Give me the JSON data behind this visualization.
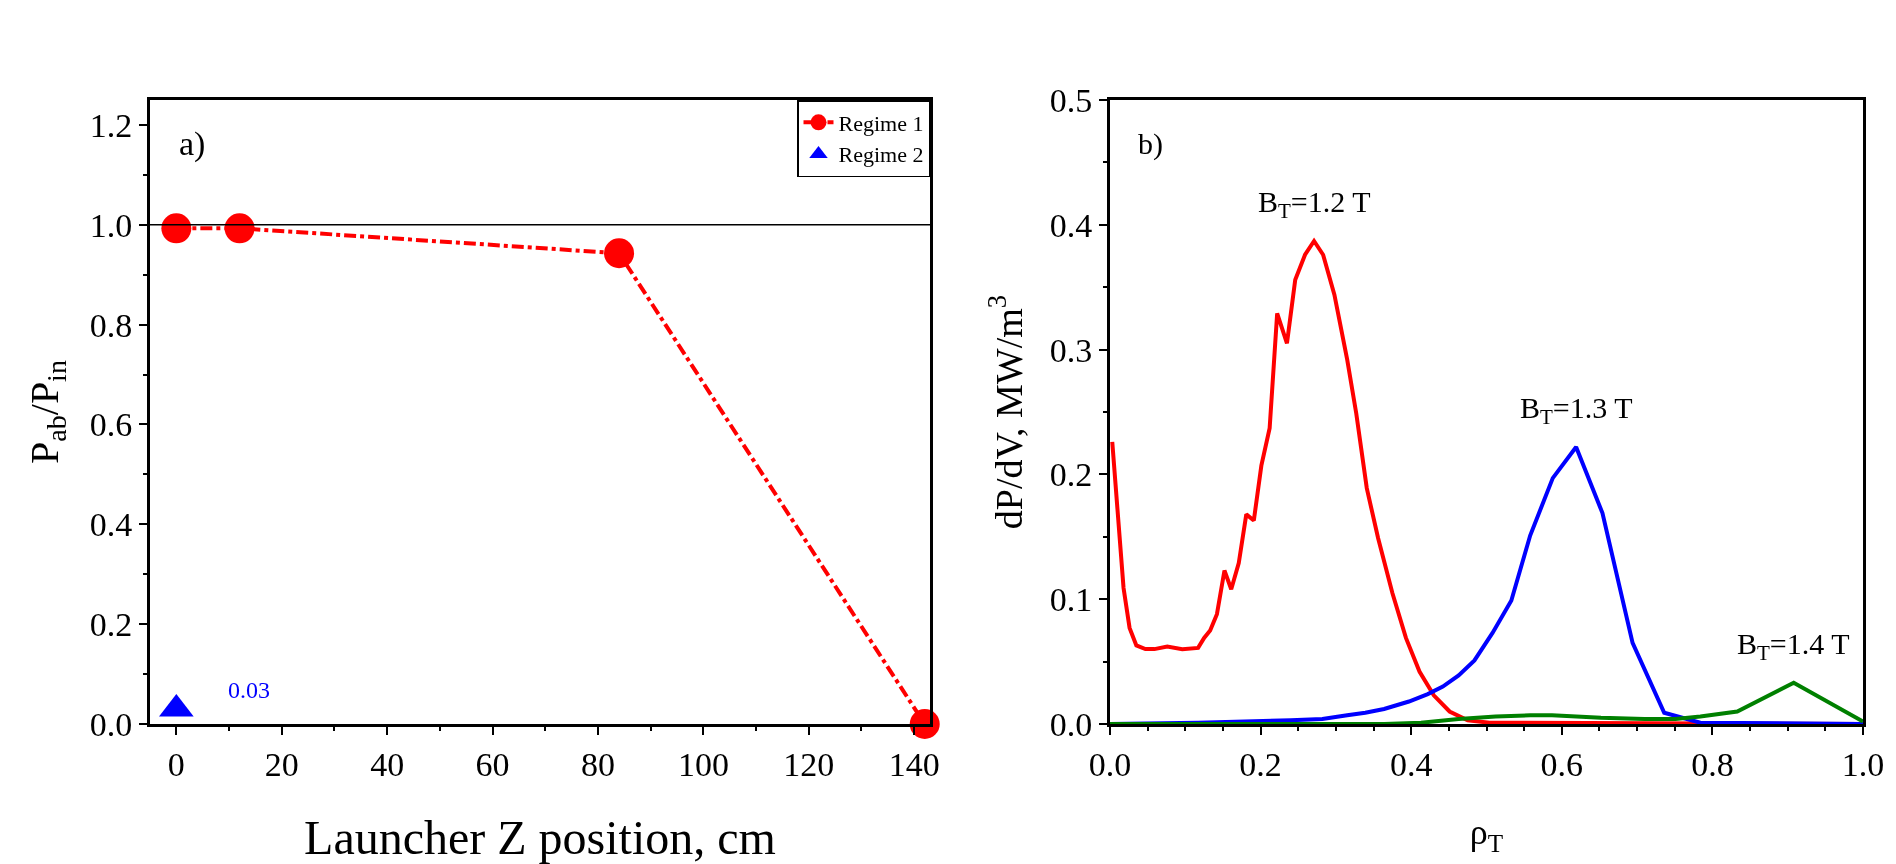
{
  "chart_data": [
    {
      "type": "line",
      "xlabel": "Launcher Z position, cm",
      "ylabel": "P$_{ab}$/P$_{in}$",
      "xlim": [
        -5,
        143
      ],
      "xticks": [
        0,
        20,
        40,
        60,
        80,
        100,
        120,
        140
      ],
      "ylim": [
        0,
        1.25
      ],
      "yticks": [
        {
          "value": 0,
          "label": "0.0"
        },
        {
          "value": 0.2,
          "label": "0.2"
        },
        {
          "value": 0.4,
          "label": "0.4"
        },
        {
          "value": 0.6,
          "label": "0.6"
        },
        {
          "value": 0.8,
          "label": "0.8"
        },
        {
          "value": 1,
          "label": "1.0"
        },
        {
          "value": 1.2,
          "label": "1.2"
        }
      ],
      "grid": false,
      "legend": "top right",
      "ref_lines": [
        {
          "axis": "y",
          "value": 1,
          "color": "#000000"
        }
      ],
      "annotations": [
        "a)",
        {
          "text": "0.03",
          "x": 0,
          "y": 0.03
        }
      ],
      "series": [
        {
          "name": "Regime 1",
          "color": "#ff0000",
          "marker": "circle",
          "line_style": "dashed",
          "x": [
            0,
            12,
            84,
            142
          ],
          "values": [
            0.993,
            0.993,
            0.943,
            0.0
          ]
        },
        {
          "name": "Regime 2",
          "type": "scatter",
          "color": "#0000ff",
          "marker": "triangle",
          "x": [
            0
          ],
          "values": [
            0.03
          ]
        }
      ]
    },
    {
      "type": "line",
      "xlabel": "ρ$_{T}$",
      "ylabel": "dP/dV, MW/m$^{3}$",
      "xlim": [
        0,
        1
      ],
      "xticks": [
        {
          "value": 0,
          "label": "0.0"
        },
        {
          "value": 0.2,
          "label": "0.2"
        },
        {
          "value": 0.4,
          "label": "0.4"
        },
        {
          "value": 0.6,
          "label": "0.6"
        },
        {
          "value": 0.8,
          "label": "0.8"
        },
        {
          "value": 1,
          "label": "1.0"
        }
      ],
      "ylim": [
        0,
        0.5
      ],
      "yticks": [
        {
          "value": 0,
          "label": "0.0"
        },
        {
          "value": 0.1,
          "label": "0.1"
        },
        {
          "value": 0.2,
          "label": "0.2"
        },
        {
          "value": 0.3,
          "label": "0.3"
        },
        {
          "value": 0.4,
          "label": "0.4"
        },
        {
          "value": 0.5,
          "label": "0.5"
        }
      ],
      "grid": false,
      "legend": false,
      "marker": "none",
      "line_style": "solid",
      "annotations": [
        "b)",
        {
          "text": "B$_{T}$=1.2 T",
          "x": 0.271,
          "y": 0.387
        },
        {
          "text": "B$_{T}$=1.3 T",
          "x": 0.619,
          "y": 0.222
        },
        {
          "text": "B$_{T}$=1.4 T",
          "x": 0.908,
          "y": 0.033
        }
      ],
      "series": [
        {
          "color": "#ff0000",
          "x": [
            0.003,
            0.018,
            0.026,
            0.035,
            0.047,
            0.059,
            0.076,
            0.096,
            0.117,
            0.125,
            0.133,
            0.142,
            0.152,
            0.161,
            0.171,
            0.181,
            0.191,
            0.201,
            0.212,
            0.222,
            0.235,
            0.246,
            0.259,
            0.271,
            0.283,
            0.298,
            0.315,
            0.327,
            0.341,
            0.356,
            0.375,
            0.393,
            0.411,
            0.43,
            0.451,
            0.475,
            0.504,
            1.0
          ],
          "values": [
            0.226,
            0.109,
            0.077,
            0.063,
            0.06,
            0.06,
            0.062,
            0.06,
            0.061,
            0.069,
            0.075,
            0.088,
            0.123,
            0.108,
            0.129,
            0.168,
            0.163,
            0.207,
            0.237,
            0.329,
            0.305,
            0.356,
            0.376,
            0.387,
            0.376,
            0.344,
            0.292,
            0.249,
            0.189,
            0.149,
            0.105,
            0.069,
            0.042,
            0.023,
            0.01,
            0.003,
            0.001,
            0
          ]
        },
        {
          "color": "#0000ff",
          "x": [
            0,
            0.117,
            0.24,
            0.282,
            0.315,
            0.339,
            0.364,
            0.397,
            0.422,
            0.442,
            0.463,
            0.484,
            0.508,
            0.533,
            0.558,
            0.588,
            0.619,
            0.654,
            0.694,
            0.736,
            0.784,
            1.0
          ],
          "values": [
            0,
            0.001,
            0.003,
            0.004,
            0.007,
            0.009,
            0.012,
            0.018,
            0.024,
            0.03,
            0.039,
            0.051,
            0.073,
            0.099,
            0.151,
            0.197,
            0.222,
            0.169,
            0.065,
            0.009,
            0.001,
            0
          ]
        },
        {
          "color": "#008000",
          "x": [
            0,
            0.364,
            0.413,
            0.463,
            0.512,
            0.558,
            0.587,
            0.652,
            0.71,
            0.751,
            0.784,
            0.833,
            0.908,
            1.0
          ],
          "values": [
            0,
            0.0,
            0.001,
            0.004,
            0.006,
            0.007,
            0.007,
            0.005,
            0.004,
            0.004,
            0.006,
            0.01,
            0.033,
            0.002
          ]
        }
      ]
    }
  ]
}
